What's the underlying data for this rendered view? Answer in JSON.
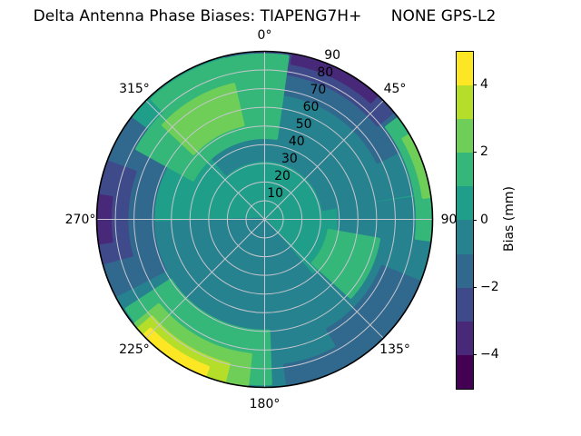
{
  "title": "Delta Antenna Phase Biases: TIAPENG7H+      NONE GPS-L2",
  "chart_data": {
    "type": "polar_contour",
    "title": "Delta Antenna Phase Biases: TIAPENG7H+      NONE GPS-L2",
    "description": "Sky plot of antenna phase bias vs azimuth (0-360 deg clockwise from top) and zenith angle (0 center to 90 edge), filled contours at 1 mm steps, viridis discrete colormap",
    "grid": true,
    "azimuth_ticks": [
      {
        "deg": 0,
        "label": "0°"
      },
      {
        "deg": 45,
        "label": "45°"
      },
      {
        "deg": 90,
        "label": "90"
      },
      {
        "deg": 135,
        "label": "135°"
      },
      {
        "deg": 180,
        "label": "180°"
      },
      {
        "deg": 225,
        "label": "225°"
      },
      {
        "deg": 270,
        "label": "270°"
      },
      {
        "deg": 315,
        "label": "315°"
      }
    ],
    "radial_axis": {
      "range": [
        0,
        90
      ],
      "tick_azimuth_deg": 22.5,
      "ticks": [
        {
          "value": 10,
          "label": "10"
        },
        {
          "value": 20,
          "label": "20"
        },
        {
          "value": 30,
          "label": "30"
        },
        {
          "value": 40,
          "label": "40"
        },
        {
          "value": 50,
          "label": "50"
        },
        {
          "value": 60,
          "label": "60"
        },
        {
          "value": 70,
          "label": "70"
        },
        {
          "value": 80,
          "label": "80"
        },
        {
          "value": 90,
          "label": "90"
        }
      ]
    },
    "levels_mm": [
      -5,
      -4,
      -3,
      -2,
      -1,
      0,
      1,
      2,
      3,
      4,
      5
    ],
    "level_colors": [
      "#440154",
      "#482878",
      "#3e4a89",
      "#31688e",
      "#26828e",
      "#1f9e89",
      "#35b779",
      "#6ece58",
      "#b5de2b",
      "#fde725"
    ],
    "base_level_mm": "0 to 1",
    "colorbar": {
      "label": "Bias (mm)",
      "range_mm": [
        -5,
        5
      ],
      "tick_values": [
        4,
        2,
        0,
        -2,
        -4
      ],
      "tick_labels": [
        "4",
        "2",
        "0",
        "−2",
        "−4"
      ]
    },
    "regions": [
      {
        "name": "teal-band-north",
        "ci": 4,
        "bias_mm": "-1 to 0",
        "az": [
          320,
          440
        ],
        "r": [
          32,
          82
        ]
      },
      {
        "name": "teal-east",
        "ci": 4,
        "bias_mm": "-1 to 0",
        "az": [
          82,
          150
        ],
        "r": [
          40,
          90
        ]
      },
      {
        "name": "teal-southwest-wedge",
        "ci": 4,
        "bias_mm": "-1 to 0",
        "az": [
          140,
          268
        ],
        "r": [
          0,
          90
        ]
      },
      {
        "name": "blue-arc-northeast",
        "ci": 3,
        "bias_mm": "-2 to -1",
        "az": [
          347,
          423
        ],
        "r": [
          68,
          90
        ]
      },
      {
        "name": "blue-arc-west",
        "ci": 3,
        "bias_mm": "-2 to -1",
        "az": [
          243,
          307
        ],
        "r": [
          60,
          90
        ]
      },
      {
        "name": "blue-patch-southeast",
        "ci": 3,
        "bias_mm": "-2 to -1",
        "az": [
          112,
          150
        ],
        "r": [
          68,
          90
        ]
      },
      {
        "name": "blue-arc-south",
        "ci": 3,
        "bias_mm": "-2 to -1",
        "az": [
          148,
          172
        ],
        "r": [
          79,
          90
        ]
      },
      {
        "name": "darkblue-arc-northeast",
        "ci": 2,
        "bias_mm": "-3 to -2",
        "az": [
          357,
          410
        ],
        "r": [
          79,
          90
        ]
      },
      {
        "name": "darkblue-arc-west",
        "ci": 2,
        "bias_mm": "-3 to -2",
        "az": [
          255,
          290
        ],
        "r": [
          74,
          90
        ]
      },
      {
        "name": "purple-sliver-northeast",
        "ci": 1,
        "bias_mm": "-4 to -3",
        "az": [
          10,
          42
        ],
        "r": [
          85,
          90
        ]
      },
      {
        "name": "purple-sliver-west",
        "ci": 1,
        "bias_mm": "-4 to -3",
        "az": [
          262,
          278
        ],
        "r": [
          83,
          90
        ]
      },
      {
        "name": "green-blob-northwest-a",
        "ci": 6,
        "bias_mm": "1 to 2",
        "az": [
          299,
          319
        ],
        "r": [
          44,
          78
        ]
      },
      {
        "name": "green-blob-northwest-b",
        "ci": 6,
        "bias_mm": "1 to 2",
        "az": [
          317,
          368
        ],
        "r": [
          44,
          88
        ]
      },
      {
        "name": "green-arc-east",
        "ci": 6,
        "bias_mm": "1 to 2",
        "az": [
          53,
          97
        ],
        "r": [
          82,
          90
        ]
      },
      {
        "name": "green-patch-southeast",
        "ci": 6,
        "bias_mm": "1 to 2",
        "az": [
          100,
          132
        ],
        "r": [
          35,
          62
        ]
      },
      {
        "name": "green-band-southwest",
        "ci": 6,
        "bias_mm": "1 to 2",
        "az": [
          178,
          237
        ],
        "r": [
          60,
          88
        ]
      },
      {
        "name": "lightgreen-core-northwest",
        "ci": 7,
        "bias_mm": "2 to 3",
        "az": [
          313,
          347
        ],
        "r": [
          52,
          74
        ]
      },
      {
        "name": "lightgreen-sliver-east",
        "ci": 7,
        "bias_mm": "2 to 3",
        "az": [
          60,
          82
        ],
        "r": [
          86,
          90
        ]
      },
      {
        "name": "lightgreen-band-southwest",
        "ci": 7,
        "bias_mm": "2 to 3",
        "az": [
          186,
          231
        ],
        "r": [
          73,
          89
        ]
      },
      {
        "name": "yellowgreen-band-southwest",
        "ci": 8,
        "bias_mm": "3 to 4",
        "az": [
          194,
          229
        ],
        "r": [
          80,
          90
        ]
      },
      {
        "name": "yellow-sliver-southwest",
        "ci": 9,
        "bias_mm": "4 to 5",
        "az": [
          201,
          226
        ],
        "r": [
          85,
          90
        ]
      }
    ]
  }
}
